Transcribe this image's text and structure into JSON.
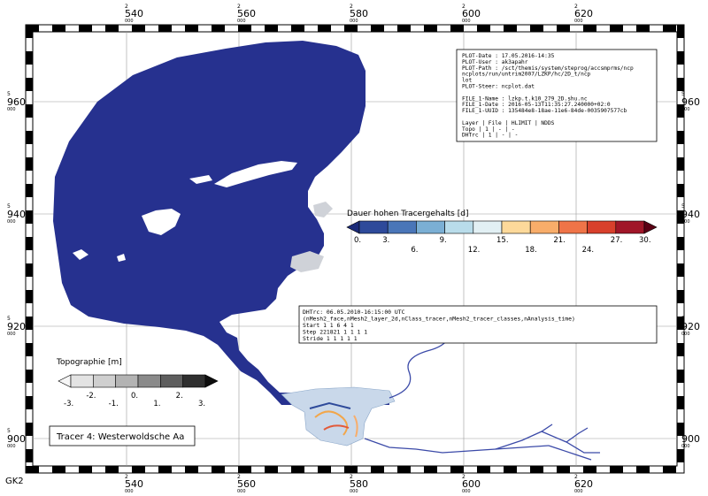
{
  "grid_system": "GK2",
  "easting_ticks": [
    {
      "top": "2",
      "mid": "540",
      "bot": "000"
    },
    {
      "top": "2",
      "mid": "560",
      "bot": "000"
    },
    {
      "top": "2",
      "mid": "580",
      "bot": "000"
    },
    {
      "top": "2",
      "mid": "600",
      "bot": "000"
    },
    {
      "top": "2",
      "mid": "620",
      "bot": "000"
    }
  ],
  "northing_ticks": [
    {
      "top": "5",
      "mid": "960",
      "bot": "000"
    },
    {
      "top": "5",
      "mid": "940",
      "bot": "000"
    },
    {
      "top": "5",
      "mid": "920",
      "bot": "000"
    },
    {
      "top": "5",
      "mid": "900",
      "bot": "000"
    }
  ],
  "info_box": {
    "lines": [
      "PLOT-Date : 17.05.2016-14:35",
      "PLOT-User : ak3apahr",
      "PLOT-Path : /sct/themis/system/steprog/accsmprms/ncp",
      "            ncplots/run/untrim2007/LZKP/hc/2D_t/ncp",
      "            lot",
      "PLOT-Steer: ncplot.dat",
      "",
      "FILE_1-Name : lzkp.t.k10_279_2D.shu.nc",
      "FILE_1-Date : 2016-05-13T11:35:27.240000+02:0",
      "FILE_1-UUID : 135484e8-18ae-11e6-84de-0035907577cb",
      "",
      "Layer | File | HLIMIT | NDDS",
      "Topo  |  1   |   -    |  -",
      "DHTrc |  1   |   -    |  -"
    ]
  },
  "tracer_legend": {
    "title": "Dauer hohen Tracergehalts [d]",
    "colors": [
      "#1a2a78",
      "#2e4a9a",
      "#4a76b8",
      "#7bafd4",
      "#b9dcea",
      "#e2f0f4",
      "#fdd99a",
      "#f8ad6a",
      "#ef7448",
      "#d8402c",
      "#a01628",
      "#5a0014"
    ],
    "labels_top": [
      "0.",
      "3.",
      "9.",
      "15.",
      "21.",
      "27.",
      "30."
    ],
    "labels_bottom": [
      "6.",
      "12.",
      "18.",
      "24."
    ]
  },
  "tracer_info": {
    "lines": [
      "DHTrc: 06.05.2010-16:15:00 UTC",
      "(nMesh2_face,nMesh2_layer_2d,nClass_tracer,nMesh2_tracer_classes,nAnalysis_time)",
      "Start         1      1      6      4      1",
      "Step     221821      1      1      1      1",
      "Stride        1      1      1      1      1"
    ]
  },
  "topo_legend": {
    "title": "Topographie [m]",
    "colors": [
      "#f6f6f6",
      "#e3e3e3",
      "#cfcfcf",
      "#b3b3b3",
      "#8a8a8a",
      "#5e5e5e",
      "#2f2f2f",
      "#0e0e0e"
    ],
    "labels_bottom": [
      "-3.",
      "-1.",
      "1.",
      "3."
    ],
    "labels_top": [
      "-2.",
      "0.",
      "2."
    ]
  },
  "tracer_name": "Tracer 4: Westerwoldsche Aa",
  "colors": {
    "water": "#26318f",
    "shade": "#cfd2d8",
    "river": "#3b4aa8"
  }
}
